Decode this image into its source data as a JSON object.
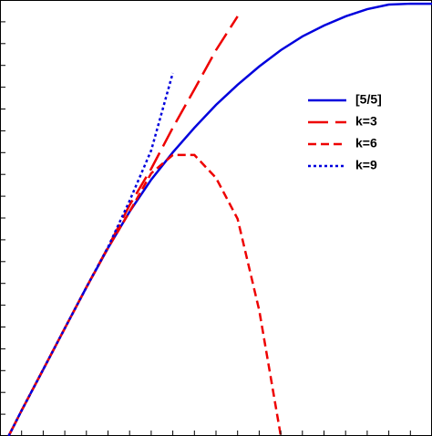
{
  "chart_data": {
    "type": "line",
    "x": [
      0.4,
      1,
      2,
      3,
      4,
      5,
      6,
      7,
      8,
      9,
      10,
      11,
      12,
      13,
      14,
      15,
      16,
      17,
      18,
      19,
      20
    ],
    "series": [
      {
        "name": "[5/5]",
        "color": "#0000dd",
        "dash": "solid",
        "values": [
          0,
          1.17,
          3.05,
          4.94,
          6.82,
          8.62,
          10.29,
          11.76,
          13.01,
          14.14,
          15.19,
          16.11,
          16.95,
          17.7,
          18.33,
          18.83,
          19.25,
          19.58,
          19.79,
          19.83,
          19.83
        ]
      },
      {
        "name": "k=3",
        "color": "#ee0000",
        "dash": "longdash",
        "values": [
          0,
          1.17,
          3.05,
          4.94,
          6.82,
          8.66,
          10.59,
          12.26,
          14.14,
          15.9,
          17.7,
          19.25,
          null,
          null,
          null,
          null,
          null,
          null,
          null,
          null,
          null
        ]
      },
      {
        "name": "k=6",
        "color": "#ee0000",
        "dash": "dash",
        "values": [
          0,
          1.17,
          3.05,
          4.94,
          6.82,
          8.62,
          10.29,
          12.05,
          12.89,
          12.89,
          11.84,
          9.96,
          5.77,
          0,
          null,
          null,
          null,
          null,
          null,
          null,
          null
        ]
      },
      {
        "name": "k=9",
        "color": "#0000dd",
        "dash": "dot",
        "values": [
          0,
          1.17,
          3.05,
          4.94,
          6.82,
          8.66,
          10.79,
          13.1,
          16.65,
          null,
          null,
          null,
          null,
          null,
          null,
          null,
          null,
          null,
          null,
          null,
          null
        ]
      }
    ],
    "xlim": [
      0,
      20
    ],
    "ylim": [
      0,
      20
    ],
    "xticks": [
      0,
      1,
      2,
      3,
      4,
      5,
      6,
      7,
      8,
      9,
      10,
      11,
      12,
      13,
      14,
      15,
      16,
      17,
      18,
      19,
      20
    ],
    "yticks": [
      0,
      1,
      2,
      3,
      4,
      5,
      6,
      7,
      8,
      9,
      10,
      11,
      12,
      13,
      14,
      15,
      16,
      17,
      18,
      19,
      20
    ],
    "legend": "upper right"
  }
}
